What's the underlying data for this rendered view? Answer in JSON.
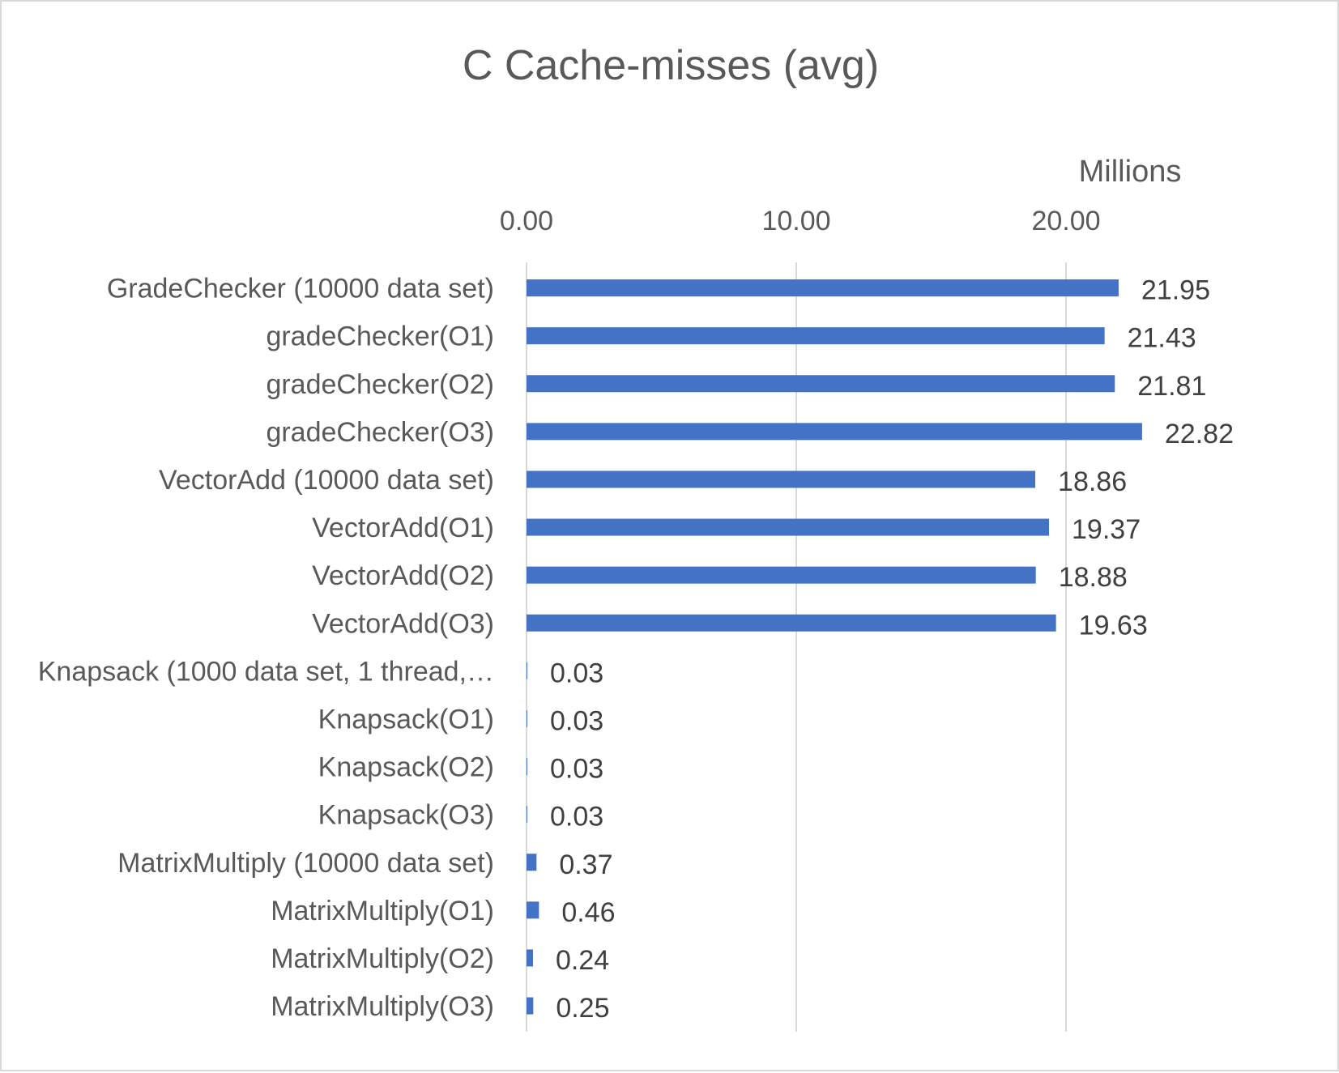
{
  "chart_data": {
    "type": "bar",
    "orientation": "horizontal",
    "title": "C Cache-misses (avg)",
    "axis_unit_label": "Millions",
    "xlim": [
      0,
      25
    ],
    "tick_values": [
      0,
      10,
      20
    ],
    "tick_labels": [
      "0.00",
      "10.00",
      "20.00"
    ],
    "gridlines": true,
    "legend": "none",
    "categories": [
      "GradeChecker (10000 data set)",
      "gradeChecker(O1)",
      "gradeChecker(O2)",
      "gradeChecker(O3)",
      "VectorAdd (10000 data set)",
      "VectorAdd(O1)",
      "VectorAdd(O2)",
      "VectorAdd(O3)",
      "Knapsack (1000 data set, 1 thread,…",
      "Knapsack(O1)",
      "Knapsack(O2)",
      "Knapsack(O3)",
      "MatrixMultiply (10000 data set)",
      "MatrixMultiply(O1)",
      "MatrixMultiply(O2)",
      "MatrixMultiply(O3)"
    ],
    "values": [
      21.95,
      21.43,
      21.81,
      22.82,
      18.86,
      19.37,
      18.88,
      19.63,
      0.03,
      0.03,
      0.03,
      0.03,
      0.37,
      0.46,
      0.24,
      0.25
    ],
    "data_labels": [
      "21.95",
      "21.43",
      "21.81",
      "22.82",
      "18.86",
      "19.37",
      "18.88",
      "19.63",
      "0.03",
      "0.03",
      "0.03",
      "0.03",
      "0.37",
      "0.46",
      "0.24",
      "0.25"
    ],
    "colors": {
      "bar": "#4472c4",
      "grid": "#d9d9d9",
      "text": "#595959",
      "label": "#404040"
    }
  }
}
